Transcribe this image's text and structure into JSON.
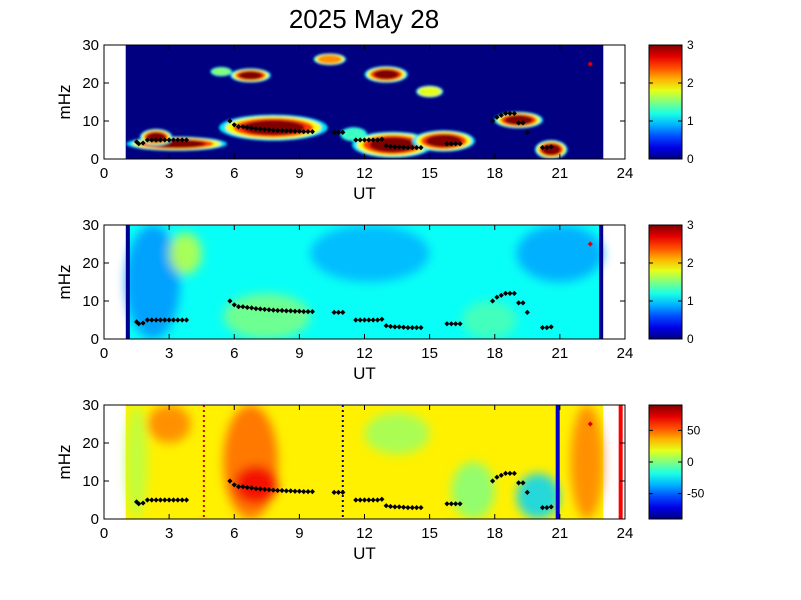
{
  "figure": {
    "title": "2025 May 28"
  },
  "chart_data": [
    {
      "type": "heatmap",
      "panel": "spectral-power",
      "xlabel": "UT",
      "ylabel": "mHz",
      "xlim": [
        0,
        24
      ],
      "ylim": [
        0,
        30
      ],
      "xticks": [
        0,
        3,
        6,
        9,
        12,
        15,
        18,
        21,
        24
      ],
      "yticks": [
        0,
        10,
        20,
        30
      ],
      "data_x_range": [
        1,
        23
      ],
      "colorbar": {
        "range": [
          0,
          3
        ],
        "ticks": [
          0,
          1,
          2,
          3
        ],
        "labels": [
          "0",
          "1",
          "2",
          "3"
        ],
        "colormap": "jet"
      },
      "background_level": 0,
      "features": [
        {
          "t0": 1.5,
          "t1": 5.2,
          "f0": 2.5,
          "f1": 5.5,
          "level": 3
        },
        {
          "t0": 1.8,
          "t1": 3.0,
          "f0": 4.0,
          "f1": 7.5,
          "level": 3
        },
        {
          "t0": 5.8,
          "t1": 9.8,
          "f0": 5.5,
          "f1": 11.0,
          "level": 3
        },
        {
          "t0": 6.0,
          "t1": 7.5,
          "f0": 20.5,
          "f1": 23.5,
          "level": 3
        },
        {
          "t0": 11.8,
          "t1": 14.8,
          "f0": 1.0,
          "f1": 6.5,
          "level": 3
        },
        {
          "t0": 14.5,
          "t1": 16.8,
          "f0": 2.5,
          "f1": 7.0,
          "level": 3
        },
        {
          "t0": 12.2,
          "t1": 13.8,
          "f0": 20.5,
          "f1": 24.0,
          "level": 3
        },
        {
          "t0": 9.8,
          "t1": 11.0,
          "f0": 25.0,
          "f1": 27.5,
          "level": 2.2
        },
        {
          "t0": 14.5,
          "t1": 15.5,
          "f0": 16.5,
          "f1": 19.0,
          "level": 1.8
        },
        {
          "t0": 18.2,
          "t1": 20.0,
          "f0": 8.5,
          "f1": 12.0,
          "level": 3
        },
        {
          "t0": 20.0,
          "t1": 21.2,
          "f0": 0.5,
          "f1": 4.5,
          "level": 3
        },
        {
          "t0": 5.0,
          "t1": 5.8,
          "f0": 22.0,
          "f1": 24.0,
          "level": 1.5
        },
        {
          "t0": 11.0,
          "t1": 12.0,
          "f0": 5.0,
          "f1": 8.0,
          "level": 1.3
        }
      ],
      "markers": "pulsations"
    },
    {
      "type": "heatmap",
      "panel": "background-power",
      "xlabel": "UT",
      "ylabel": "mHz",
      "xlim": [
        0,
        24
      ],
      "ylim": [
        0,
        30
      ],
      "xticks": [
        0,
        3,
        6,
        9,
        12,
        15,
        18,
        21,
        24
      ],
      "yticks": [
        0,
        10,
        20,
        30
      ],
      "data_x_range": [
        1,
        23
      ],
      "edge_lines": [
        1.1,
        22.9
      ],
      "colorbar": {
        "range": [
          0,
          3
        ],
        "ticks": [
          0,
          1,
          2,
          3
        ],
        "labels": [
          "0",
          "1",
          "2",
          "3"
        ],
        "colormap": "jet"
      },
      "background_level": 1.15,
      "features": [
        {
          "t0": 1.0,
          "t1": 3.5,
          "f0": 0,
          "f1": 30,
          "level": 0.8
        },
        {
          "t0": 3.0,
          "t1": 4.5,
          "f0": 17,
          "f1": 28,
          "level": 1.7
        },
        {
          "t0": 5.5,
          "t1": 9.5,
          "f0": 0,
          "f1": 12,
          "level": 1.5
        },
        {
          "t0": 9.5,
          "t1": 15.0,
          "f0": 15,
          "f1": 30,
          "level": 0.9
        },
        {
          "t0": 19.0,
          "t1": 23.0,
          "f0": 15,
          "f1": 30,
          "level": 0.85
        },
        {
          "t0": 16.5,
          "t1": 19.0,
          "f0": 0,
          "f1": 10,
          "level": 1.35
        }
      ],
      "markers": "pulsations"
    },
    {
      "type": "heatmap",
      "panel": "polarization",
      "xlabel": "UT",
      "ylabel": "mHz",
      "xlim": [
        0,
        24
      ],
      "ylim": [
        0,
        30
      ],
      "xticks": [
        0,
        3,
        6,
        9,
        12,
        15,
        18,
        21,
        24
      ],
      "yticks": [
        0,
        10,
        20,
        30
      ],
      "data_x_range": [
        1,
        23
      ],
      "colorbar": {
        "range": [
          -90,
          90
        ],
        "ticks": [
          50,
          0,
          -50
        ],
        "labels": [
          "50",
          "0",
          "-50"
        ],
        "colormap": "jet"
      },
      "background_level": 25,
      "features": [
        {
          "t0": 1.0,
          "t1": 2.0,
          "f0": 0,
          "f1": 30,
          "level": 10
        },
        {
          "t0": 2.0,
          "t1": 4.0,
          "f0": 20,
          "f1": 30,
          "level": 45
        },
        {
          "t0": 5.5,
          "t1": 8.0,
          "f0": 0,
          "f1": 30,
          "level": 50
        },
        {
          "t0": 6.0,
          "t1": 8.0,
          "f0": 4,
          "f1": 14,
          "level": 70
        },
        {
          "t0": 12.0,
          "t1": 15.0,
          "f0": 17,
          "f1": 28,
          "level": 5
        },
        {
          "t0": 16.0,
          "t1": 18.0,
          "f0": 0,
          "f1": 15,
          "level": 0
        },
        {
          "t0": 19.0,
          "t1": 21.0,
          "f0": 0,
          "f1": 12,
          "level": -30
        },
        {
          "t0": 21.5,
          "t1": 23.0,
          "f0": 0,
          "f1": 30,
          "level": 45
        }
      ],
      "vlines": [
        {
          "t": 4.6,
          "color": "#cc0000",
          "style": "dotted"
        },
        {
          "t": 11.0,
          "color": "#000080",
          "style": "dotted"
        },
        {
          "t": 20.9,
          "color": "#0000cc",
          "style": "solid"
        },
        {
          "t": 23.8,
          "color": "#ff0000",
          "style": "solid"
        }
      ],
      "markers": "pulsations"
    }
  ],
  "pulsations": [
    {
      "t": 1.5,
      "f": 4.5
    },
    {
      "t": 1.6,
      "f": 4.0
    },
    {
      "t": 1.8,
      "f": 4.2
    },
    {
      "t": 2.0,
      "f": 5.0
    },
    {
      "t": 2.2,
      "f": 5.0
    },
    {
      "t": 2.4,
      "f": 5.0
    },
    {
      "t": 2.6,
      "f": 5.0
    },
    {
      "t": 2.8,
      "f": 5.0
    },
    {
      "t": 3.0,
      "f": 5.0
    },
    {
      "t": 3.2,
      "f": 5.0
    },
    {
      "t": 3.4,
      "f": 5.0
    },
    {
      "t": 3.6,
      "f": 5.0
    },
    {
      "t": 3.8,
      "f": 5.0
    },
    {
      "t": 5.8,
      "f": 10.0
    },
    {
      "t": 6.0,
      "f": 9.0
    },
    {
      "t": 6.2,
      "f": 8.5
    },
    {
      "t": 6.4,
      "f": 8.5
    },
    {
      "t": 6.6,
      "f": 8.3
    },
    {
      "t": 6.8,
      "f": 8.2
    },
    {
      "t": 7.0,
      "f": 8.0
    },
    {
      "t": 7.2,
      "f": 7.9
    },
    {
      "t": 7.4,
      "f": 7.8
    },
    {
      "t": 7.6,
      "f": 7.7
    },
    {
      "t": 7.8,
      "f": 7.6
    },
    {
      "t": 8.0,
      "f": 7.5
    },
    {
      "t": 8.2,
      "f": 7.5
    },
    {
      "t": 8.4,
      "f": 7.4
    },
    {
      "t": 8.6,
      "f": 7.4
    },
    {
      "t": 8.8,
      "f": 7.3
    },
    {
      "t": 9.0,
      "f": 7.3
    },
    {
      "t": 9.2,
      "f": 7.2
    },
    {
      "t": 9.4,
      "f": 7.2
    },
    {
      "t": 9.6,
      "f": 7.2
    },
    {
      "t": 10.6,
      "f": 7.0
    },
    {
      "t": 10.8,
      "f": 7.0
    },
    {
      "t": 11.0,
      "f": 7.0
    },
    {
      "t": 11.6,
      "f": 5.0
    },
    {
      "t": 11.8,
      "f": 5.0
    },
    {
      "t": 12.0,
      "f": 5.0
    },
    {
      "t": 12.2,
      "f": 5.0
    },
    {
      "t": 12.4,
      "f": 5.0
    },
    {
      "t": 12.6,
      "f": 5.0
    },
    {
      "t": 12.8,
      "f": 5.2
    },
    {
      "t": 13.0,
      "f": 3.5
    },
    {
      "t": 13.2,
      "f": 3.3
    },
    {
      "t": 13.4,
      "f": 3.2
    },
    {
      "t": 13.6,
      "f": 3.2
    },
    {
      "t": 13.8,
      "f": 3.1
    },
    {
      "t": 14.0,
      "f": 3.0
    },
    {
      "t": 14.2,
      "f": 3.0
    },
    {
      "t": 14.4,
      "f": 3.0
    },
    {
      "t": 14.6,
      "f": 3.0
    },
    {
      "t": 15.8,
      "f": 4.0
    },
    {
      "t": 16.0,
      "f": 4.0
    },
    {
      "t": 16.2,
      "f": 4.0
    },
    {
      "t": 16.4,
      "f": 4.0
    },
    {
      "t": 17.9,
      "f": 10.0
    },
    {
      "t": 18.1,
      "f": 11.0
    },
    {
      "t": 18.3,
      "f": 11.5
    },
    {
      "t": 18.5,
      "f": 12.0
    },
    {
      "t": 18.7,
      "f": 12.0
    },
    {
      "t": 18.9,
      "f": 12.0
    },
    {
      "t": 19.1,
      "f": 9.5
    },
    {
      "t": 19.3,
      "f": 9.5
    },
    {
      "t": 19.5,
      "f": 7.0
    },
    {
      "t": 20.2,
      "f": 3.0
    },
    {
      "t": 20.4,
      "f": 3.0
    },
    {
      "t": 20.6,
      "f": 3.2
    },
    {
      "t": 22.4,
      "f": 25.0,
      "color": "#dd0000"
    }
  ],
  "axis_text": {
    "xlabel": "UT",
    "ylabel": "mHz"
  }
}
